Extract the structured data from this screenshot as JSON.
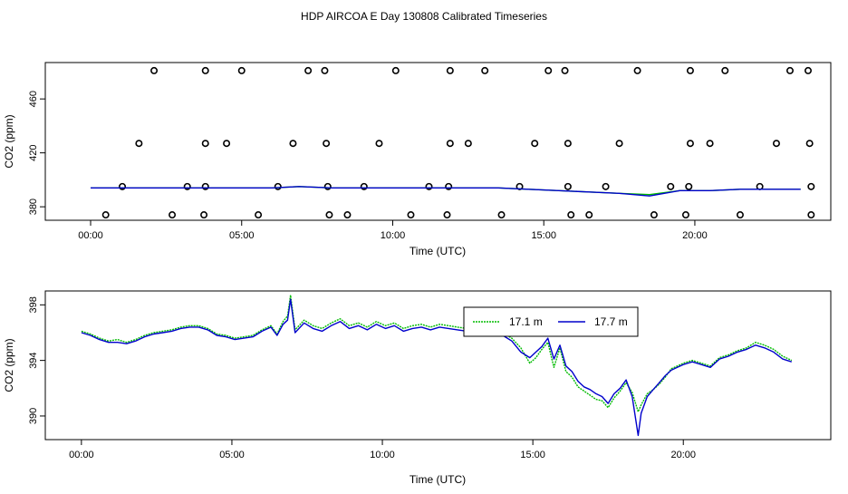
{
  "page": {
    "title": "HDP AIRCOA E  Day 130808  Calibrated Timeseries"
  },
  "colors": {
    "green": "#00bb00",
    "blue": "#0000cc",
    "axis": "#000000",
    "background": "#ffffff"
  },
  "chart_data": [
    {
      "type": "scatter",
      "xlabel": "Time (UTC)",
      "ylabel": "CO2 (ppm)",
      "xlim": [
        -1.5,
        24.5
      ],
      "ylim": [
        370,
        487
      ],
      "x_ticks": [
        0,
        5,
        10,
        15,
        20
      ],
      "x_tick_labels": [
        "00:00",
        "05:00",
        "10:00",
        "15:00",
        "20:00"
      ],
      "y_ticks": [
        380,
        420,
        460
      ],
      "y_tick_labels": [
        "380",
        "420",
        "460"
      ],
      "grid": false,
      "series": [
        {
          "marker": "open-circle",
          "x": [
            2.1,
            3.8,
            5.0,
            7.2,
            7.75,
            10.1,
            11.9,
            13.05,
            15.15,
            15.7,
            18.1,
            19.85,
            21.0,
            23.15,
            23.75,
            1.6,
            3.8,
            4.5,
            6.7,
            7.8,
            9.55,
            11.9,
            12.5,
            14.7,
            15.8,
            17.5,
            19.85,
            20.5,
            22.7,
            23.8,
            1.05,
            3.2,
            3.8,
            6.2,
            7.85,
            9.05,
            11.2,
            11.85,
            14.2,
            15.8,
            17.05,
            19.2,
            19.8,
            22.15,
            23.85,
            0.5,
            2.7,
            3.75,
            5.55,
            7.9,
            8.5,
            10.6,
            11.8,
            13.6,
            15.9,
            16.5,
            18.65,
            19.7,
            21.5,
            23.85
          ],
          "y": [
            481,
            481,
            481,
            481,
            481,
            481,
            481,
            481,
            481,
            481,
            481,
            481,
            481,
            481,
            481,
            427,
            427,
            427,
            427,
            427,
            427,
            427,
            427,
            427,
            427,
            427,
            427,
            427,
            427,
            427,
            395,
            395,
            395,
            395,
            395,
            395,
            395,
            395,
            395,
            395,
            395,
            395,
            395,
            395,
            395,
            374,
            374,
            374,
            374,
            374,
            374,
            374,
            374,
            374,
            374,
            374,
            374,
            374,
            374,
            374
          ]
        },
        {
          "style": "line",
          "color": "green",
          "x": [
            0,
            2,
            4,
            6,
            6.9,
            8,
            10,
            12,
            13.5,
            14.5,
            15.5,
            16.5,
            17.5,
            18.5,
            19.5,
            20.5,
            21.5,
            22.5,
            23.5
          ],
          "y": [
            394,
            394,
            394,
            394,
            395,
            394,
            394,
            394,
            394,
            393,
            392,
            391,
            390,
            389,
            392,
            392,
            393,
            393,
            393
          ]
        },
        {
          "style": "line",
          "color": "blue",
          "x": [
            0,
            2,
            4,
            6,
            6.9,
            8,
            10,
            12,
            13.5,
            14.5,
            15.5,
            16.5,
            17.5,
            18.5,
            19.5,
            20.5,
            21.5,
            22.5,
            23.5
          ],
          "y": [
            394,
            394,
            394,
            394,
            395,
            394,
            394,
            394,
            394,
            393,
            392,
            391,
            390,
            388,
            392,
            392,
            393,
            393,
            393
          ]
        }
      ]
    },
    {
      "type": "line",
      "xlabel": "Time (UTC)",
      "ylabel": "CO2 (ppm)",
      "xlim": [
        -1.2,
        24.9
      ],
      "ylim": [
        388.3,
        399.0
      ],
      "x_ticks": [
        0,
        5,
        10,
        15,
        20
      ],
      "x_tick_labels": [
        "00:00",
        "05:00",
        "10:00",
        "15:00",
        "20:00"
      ],
      "y_ticks": [
        390,
        394,
        398
      ],
      "y_tick_labels": [
        "390",
        "394",
        "398"
      ],
      "grid": false,
      "legend": {
        "placement": "top-right"
      },
      "series": [
        {
          "name": "17.1 m",
          "color": "green",
          "style": "dotted",
          "x": [
            0,
            0.3,
            0.6,
            0.9,
            1.2,
            1.5,
            1.8,
            2.1,
            2.4,
            2.7,
            3.0,
            3.3,
            3.6,
            3.9,
            4.2,
            4.5,
            4.8,
            5.1,
            5.4,
            5.7,
            6.0,
            6.3,
            6.5,
            6.7,
            6.85,
            6.95,
            7.1,
            7.4,
            7.7,
            8.0,
            8.3,
            8.6,
            8.9,
            9.2,
            9.5,
            9.8,
            10.1,
            10.4,
            10.7,
            11.0,
            11.3,
            11.6,
            11.9,
            12.2,
            12.5,
            12.8,
            13.1,
            13.4,
            13.7,
            14.0,
            14.3,
            14.6,
            14.9,
            15.1,
            15.3,
            15.5,
            15.7,
            15.9,
            16.1,
            16.3,
            16.5,
            16.7,
            16.9,
            17.1,
            17.3,
            17.5,
            17.7,
            17.9,
            18.1,
            18.3,
            18.5,
            18.6,
            18.8,
            19.0,
            19.2,
            19.4,
            19.6,
            19.8,
            20.0,
            20.3,
            20.6,
            20.9,
            21.2,
            21.5,
            21.8,
            22.1,
            22.4,
            22.7,
            23.0,
            23.3,
            23.6
          ],
          "y": [
            396.1,
            395.9,
            395.6,
            395.4,
            395.5,
            395.3,
            395.5,
            395.8,
            396.0,
            396.1,
            396.2,
            396.4,
            396.5,
            396.5,
            396.3,
            395.9,
            395.8,
            395.6,
            395.7,
            395.8,
            396.2,
            396.5,
            395.9,
            396.8,
            397.2,
            398.7,
            396.2,
            396.9,
            396.5,
            396.3,
            396.7,
            397.0,
            396.5,
            396.7,
            396.4,
            396.8,
            396.5,
            396.7,
            396.3,
            396.5,
            396.6,
            396.4,
            396.6,
            396.5,
            396.4,
            396.3,
            396.5,
            396.4,
            396.3,
            396.0,
            395.6,
            394.9,
            393.8,
            394.2,
            394.8,
            395.3,
            393.5,
            394.9,
            393.2,
            392.8,
            392.1,
            391.8,
            391.5,
            391.2,
            391.1,
            390.6,
            391.3,
            391.8,
            392.4,
            391.7,
            390.3,
            390.8,
            391.6,
            391.9,
            392.3,
            392.8,
            393.4,
            393.6,
            393.8,
            394.0,
            393.8,
            393.6,
            394.2,
            394.4,
            394.7,
            394.9,
            395.3,
            395.1,
            394.8,
            394.3,
            394.0
          ]
        },
        {
          "name": "17.7 m",
          "color": "blue",
          "style": "solid",
          "x": [
            0,
            0.3,
            0.6,
            0.9,
            1.2,
            1.5,
            1.8,
            2.1,
            2.4,
            2.7,
            3.0,
            3.3,
            3.6,
            3.9,
            4.2,
            4.5,
            4.8,
            5.1,
            5.4,
            5.7,
            6.0,
            6.3,
            6.5,
            6.7,
            6.85,
            6.95,
            7.1,
            7.4,
            7.7,
            8.0,
            8.3,
            8.6,
            8.9,
            9.2,
            9.5,
            9.8,
            10.1,
            10.4,
            10.7,
            11.0,
            11.3,
            11.6,
            11.9,
            12.2,
            12.5,
            12.8,
            13.1,
            13.4,
            13.7,
            14.0,
            14.3,
            14.6,
            14.9,
            15.1,
            15.3,
            15.5,
            15.7,
            15.9,
            16.1,
            16.3,
            16.5,
            16.7,
            16.9,
            17.1,
            17.3,
            17.5,
            17.7,
            17.9,
            18.1,
            18.3,
            18.5,
            18.6,
            18.8,
            19.0,
            19.2,
            19.4,
            19.6,
            19.8,
            20.0,
            20.3,
            20.6,
            20.9,
            21.2,
            21.5,
            21.8,
            22.1,
            22.4,
            22.7,
            23.0,
            23.3,
            23.6
          ],
          "y": [
            396.0,
            395.8,
            395.5,
            395.3,
            395.3,
            395.2,
            395.4,
            395.7,
            395.9,
            396.0,
            396.1,
            396.3,
            396.4,
            396.4,
            396.2,
            395.8,
            395.7,
            395.5,
            395.6,
            395.7,
            396.1,
            396.4,
            395.8,
            396.6,
            396.9,
            398.4,
            396.0,
            396.7,
            396.3,
            396.1,
            396.5,
            396.8,
            396.3,
            396.5,
            396.2,
            396.6,
            396.3,
            396.5,
            396.1,
            396.3,
            396.4,
            396.2,
            396.4,
            396.3,
            396.2,
            396.1,
            396.3,
            396.2,
            396.1,
            395.8,
            395.4,
            394.6,
            394.2,
            394.6,
            395.0,
            395.6,
            394.1,
            395.1,
            393.6,
            393.2,
            392.5,
            392.1,
            391.9,
            391.6,
            391.4,
            390.9,
            391.6,
            392.0,
            392.6,
            391.4,
            388.6,
            390.2,
            391.4,
            391.9,
            392.4,
            392.9,
            393.3,
            393.5,
            393.7,
            393.9,
            393.7,
            393.5,
            394.1,
            394.3,
            394.6,
            394.8,
            395.1,
            394.9,
            394.6,
            394.1,
            393.9
          ]
        }
      ]
    }
  ]
}
